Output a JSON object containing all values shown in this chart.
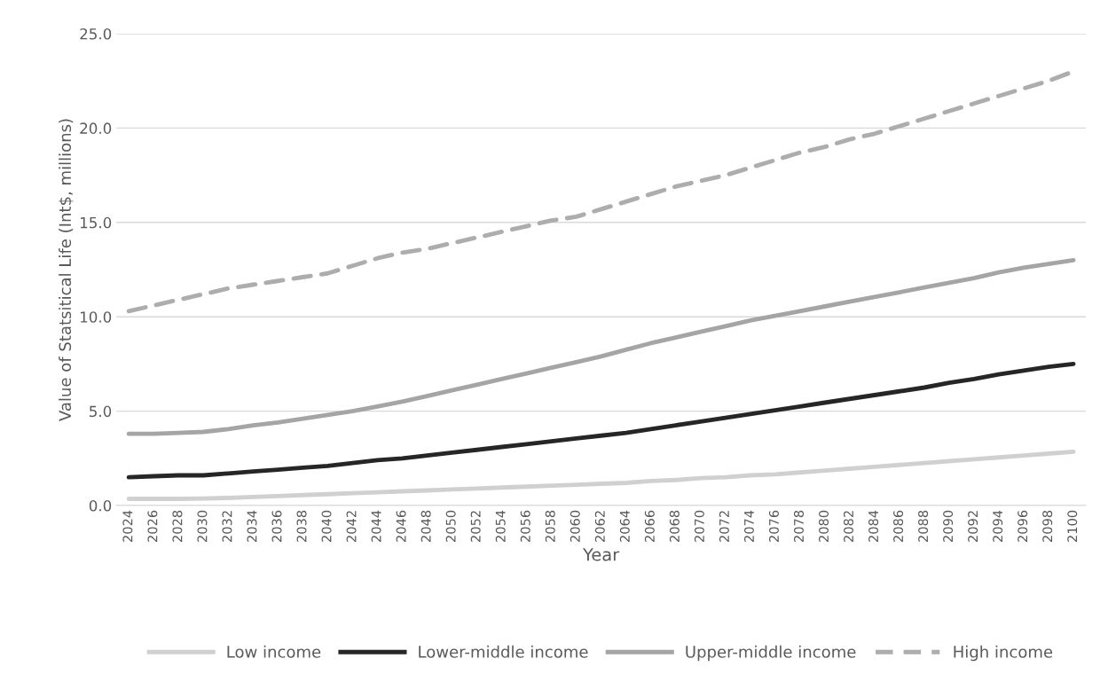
{
  "chart_data": {
    "type": "line",
    "xlabel": "Year",
    "ylabel": "Value of Statsitical Life (Int$, millions)",
    "categories": [
      "2024",
      "2026",
      "2028",
      "2030",
      "2032",
      "2034",
      "2036",
      "2038",
      "2040",
      "2042",
      "2044",
      "2046",
      "2048",
      "2050",
      "2052",
      "2054",
      "2056",
      "2058",
      "2060",
      "2062",
      "2064",
      "2066",
      "2068",
      "2070",
      "2072",
      "2074",
      "2076",
      "2078",
      "2080",
      "2082",
      "2084",
      "2086",
      "2088",
      "2090",
      "2092",
      "2094",
      "2096",
      "2098",
      "2100"
    ],
    "series": [
      {
        "name": "Low income",
        "color": "#d0d0d0",
        "line_style": "solid",
        "values": [
          0.35,
          0.35,
          0.35,
          0.37,
          0.4,
          0.45,
          0.5,
          0.55,
          0.6,
          0.65,
          0.7,
          0.75,
          0.8,
          0.85,
          0.9,
          0.95,
          1.0,
          1.05,
          1.1,
          1.15,
          1.2,
          1.3,
          1.35,
          1.45,
          1.5,
          1.6,
          1.65,
          1.75,
          1.85,
          1.95,
          2.05,
          2.15,
          2.25,
          2.35,
          2.45,
          2.55,
          2.65,
          2.75,
          2.85
        ]
      },
      {
        "name": "Lower-middle income",
        "color": "#262626",
        "line_style": "solid",
        "values": [
          1.5,
          1.55,
          1.6,
          1.6,
          1.7,
          1.8,
          1.9,
          2.0,
          2.1,
          2.25,
          2.4,
          2.5,
          2.65,
          2.8,
          2.95,
          3.1,
          3.25,
          3.4,
          3.55,
          3.7,
          3.85,
          4.05,
          4.25,
          4.45,
          4.65,
          4.85,
          5.05,
          5.25,
          5.45,
          5.65,
          5.85,
          6.05,
          6.25,
          6.5,
          6.7,
          6.95,
          7.15,
          7.35,
          7.5
        ]
      },
      {
        "name": "Upper-middle income",
        "color": "#a5a5a5",
        "line_style": "solid",
        "values": [
          3.8,
          3.8,
          3.85,
          3.9,
          4.05,
          4.25,
          4.4,
          4.6,
          4.8,
          5.0,
          5.25,
          5.5,
          5.8,
          6.1,
          6.4,
          6.7,
          7.0,
          7.3,
          7.6,
          7.9,
          8.25,
          8.6,
          8.9,
          9.2,
          9.5,
          9.8,
          10.05,
          10.3,
          10.55,
          10.8,
          11.05,
          11.3,
          11.55,
          11.8,
          12.05,
          12.35,
          12.6,
          12.8,
          13.0
        ]
      },
      {
        "name": "High income",
        "color": "#adadad",
        "line_style": "dashed",
        "values": [
          10.3,
          10.6,
          10.9,
          11.2,
          11.5,
          11.7,
          11.9,
          12.1,
          12.3,
          12.7,
          13.1,
          13.4,
          13.6,
          13.9,
          14.2,
          14.5,
          14.8,
          15.1,
          15.3,
          15.7,
          16.1,
          16.5,
          16.9,
          17.2,
          17.5,
          17.9,
          18.3,
          18.7,
          19.0,
          19.4,
          19.7,
          20.1,
          20.5,
          20.9,
          21.3,
          21.7,
          22.1,
          22.5,
          23.0
        ]
      }
    ],
    "ylim": [
      0,
      25
    ],
    "yticks": [
      {
        "value": 0,
        "label": "0.0"
      },
      {
        "value": 5,
        "label": "5.0"
      },
      {
        "value": 10,
        "label": "10.0"
      },
      {
        "value": 15,
        "label": "15.0"
      },
      {
        "value": 20,
        "label": "20.0"
      },
      {
        "value": 25,
        "label": "25.0"
      }
    ],
    "grid": "y",
    "legend": "bottom"
  }
}
